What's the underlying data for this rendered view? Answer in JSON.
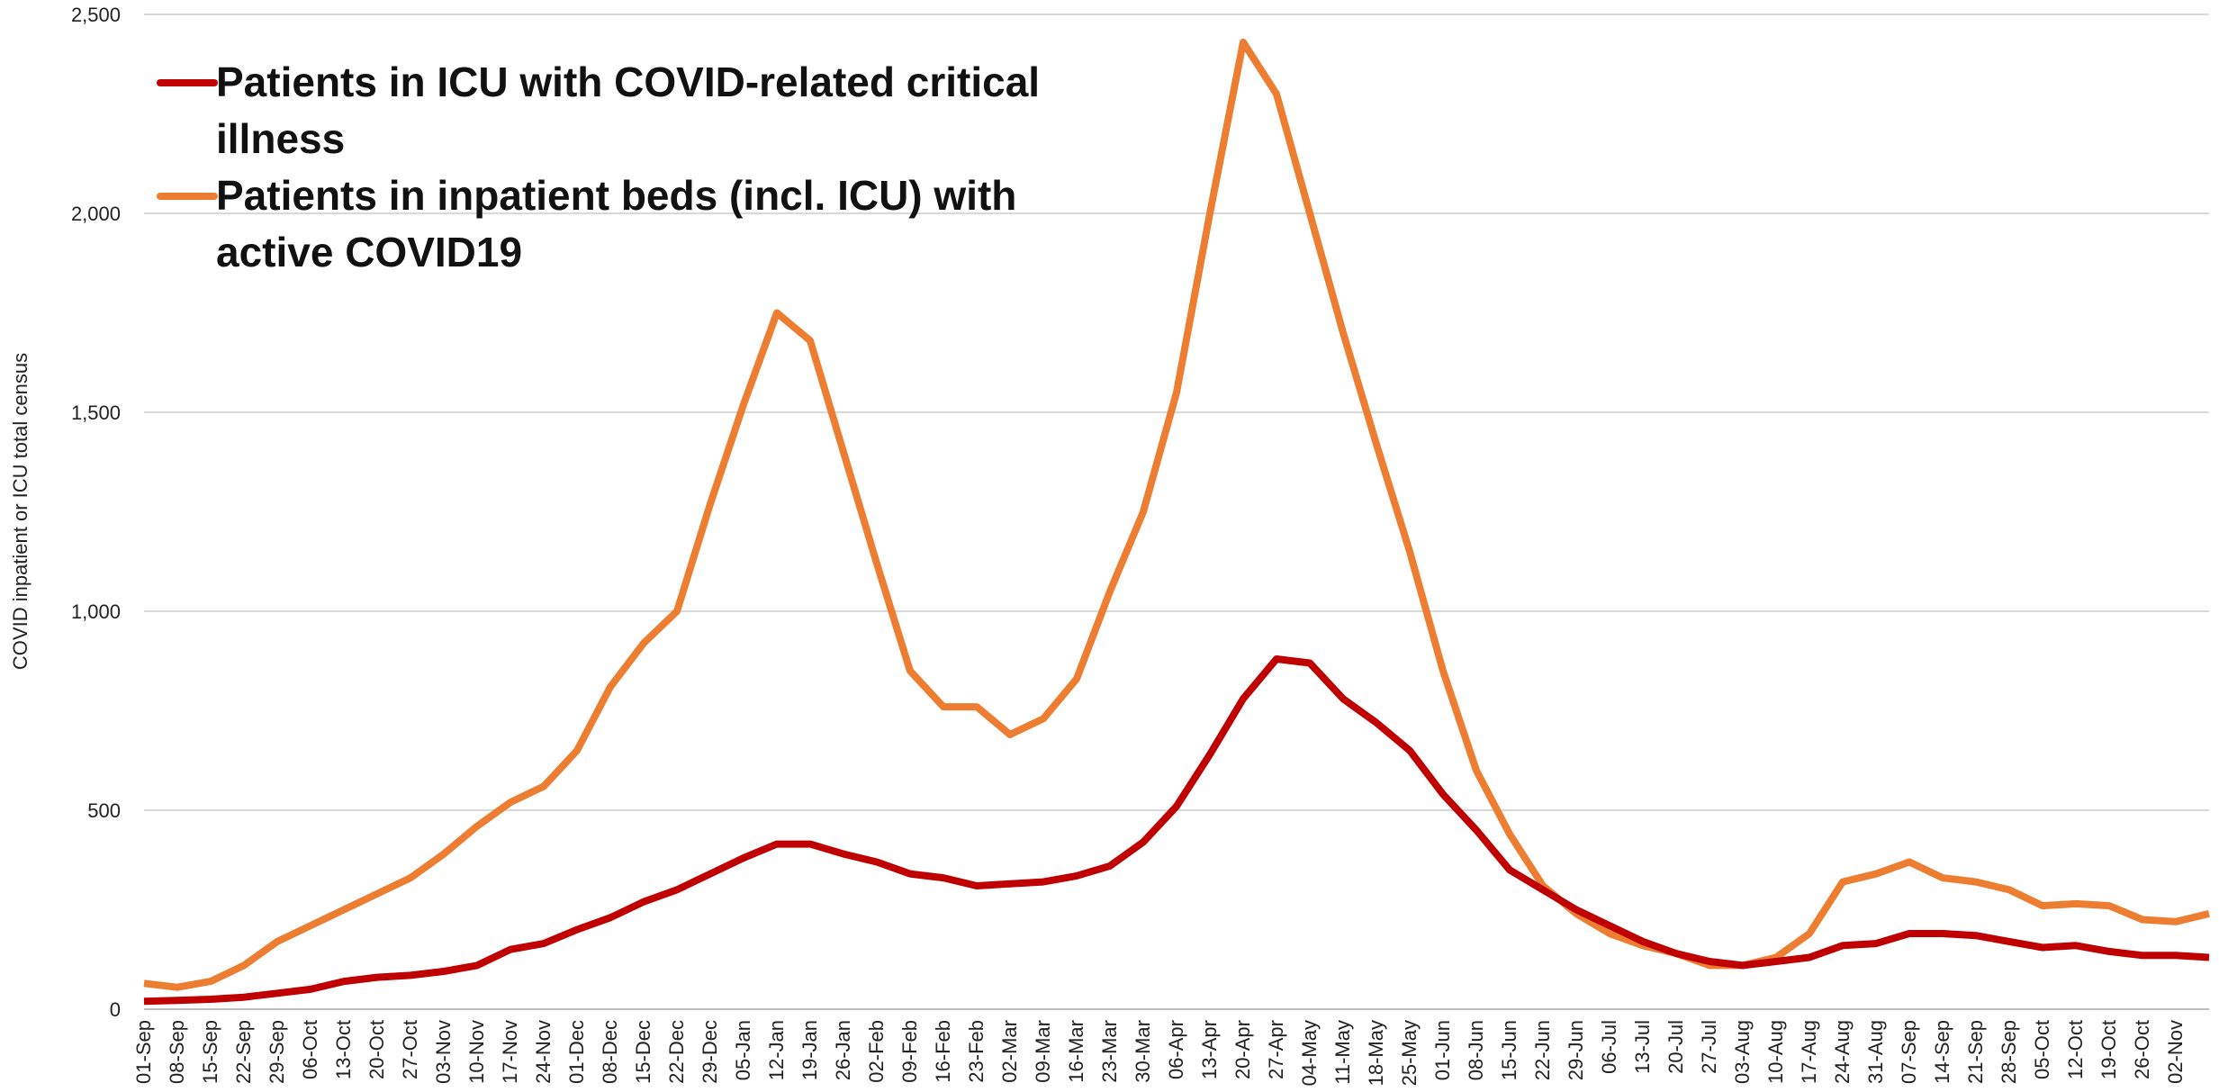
{
  "chart_data": {
    "type": "line",
    "y_label": "COVID inpatient or ICU total census",
    "categories": [
      "01-Sep",
      "08-Sep",
      "15-Sep",
      "22-Sep",
      "29-Sep",
      "06-Oct",
      "13-Oct",
      "20-Oct",
      "27-Oct",
      "03-Nov",
      "10-Nov",
      "17-Nov",
      "24-Nov",
      "01-Dec",
      "08-Dec",
      "15-Dec",
      "22-Dec",
      "29-Dec",
      "05-Jan",
      "12-Jan",
      "19-Jan",
      "26-Jan",
      "02-Feb",
      "09-Feb",
      "16-Feb",
      "23-Feb",
      "02-Mar",
      "09-Mar",
      "16-Mar",
      "23-Mar",
      "30-Mar",
      "06-Apr",
      "13-Apr",
      "20-Apr",
      "27-Apr",
      "04-May",
      "11-May",
      "18-May",
      "25-May",
      "01-Jun",
      "08-Jun",
      "15-Jun",
      "22-Jun",
      "29-Jun",
      "06-Jul",
      "13-Jul",
      "20-Jul",
      "27-Jul",
      "03-Aug",
      "10-Aug",
      "17-Aug",
      "24-Aug",
      "31-Aug",
      "07-Sep",
      "14-Sep",
      "21-Sep",
      "28-Sep",
      "05-Oct",
      "12-Oct",
      "19-Oct",
      "26-Oct",
      "02-Nov",
      null
    ],
    "series": [
      {
        "name": "Patients in ICU with COVID-related critical illness",
        "color": "#c00000",
        "values": [
          20,
          22,
          25,
          30,
          40,
          50,
          70,
          80,
          85,
          95,
          110,
          150,
          165,
          200,
          230,
          270,
          300,
          340,
          380,
          415,
          415,
          390,
          370,
          340,
          330,
          310,
          315,
          320,
          335,
          360,
          420,
          510,
          640,
          780,
          880,
          870,
          780,
          720,
          650,
          540,
          450,
          350,
          300,
          250,
          210,
          170,
          140,
          120,
          110,
          120,
          130,
          160,
          165,
          190,
          190,
          185,
          170,
          155,
          160,
          145,
          135,
          135,
          130
        ]
      },
      {
        "name": "Patients in inpatient beds (incl. ICU) with active COVID19",
        "color": "#ed7d31",
        "values": [
          65,
          55,
          70,
          110,
          170,
          210,
          250,
          290,
          330,
          390,
          460,
          520,
          560,
          650,
          810,
          920,
          1000,
          1270,
          1520,
          1750,
          1680,
          1400,
          1120,
          850,
          760,
          760,
          690,
          730,
          830,
          1050,
          1250,
          1550,
          2000,
          2430,
          2300,
          2000,
          1700,
          1420,
          1150,
          850,
          600,
          440,
          310,
          240,
          190,
          160,
          140,
          110,
          110,
          130,
          190,
          320,
          340,
          370,
          330,
          320,
          300,
          260,
          265,
          260,
          225,
          220,
          240
        ]
      }
    ],
    "ylim": [
      0,
      2500
    ],
    "yticks": [
      {
        "value": 0,
        "label": "0"
      },
      {
        "value": 500,
        "label": "500"
      },
      {
        "value": 1000,
        "label": "1,000"
      },
      {
        "value": 1500,
        "label": "1,500"
      },
      {
        "value": 2000,
        "label": "2,000"
      },
      {
        "value": 2500,
        "label": "2,500"
      }
    ],
    "grid": true,
    "legend": "upper left"
  }
}
